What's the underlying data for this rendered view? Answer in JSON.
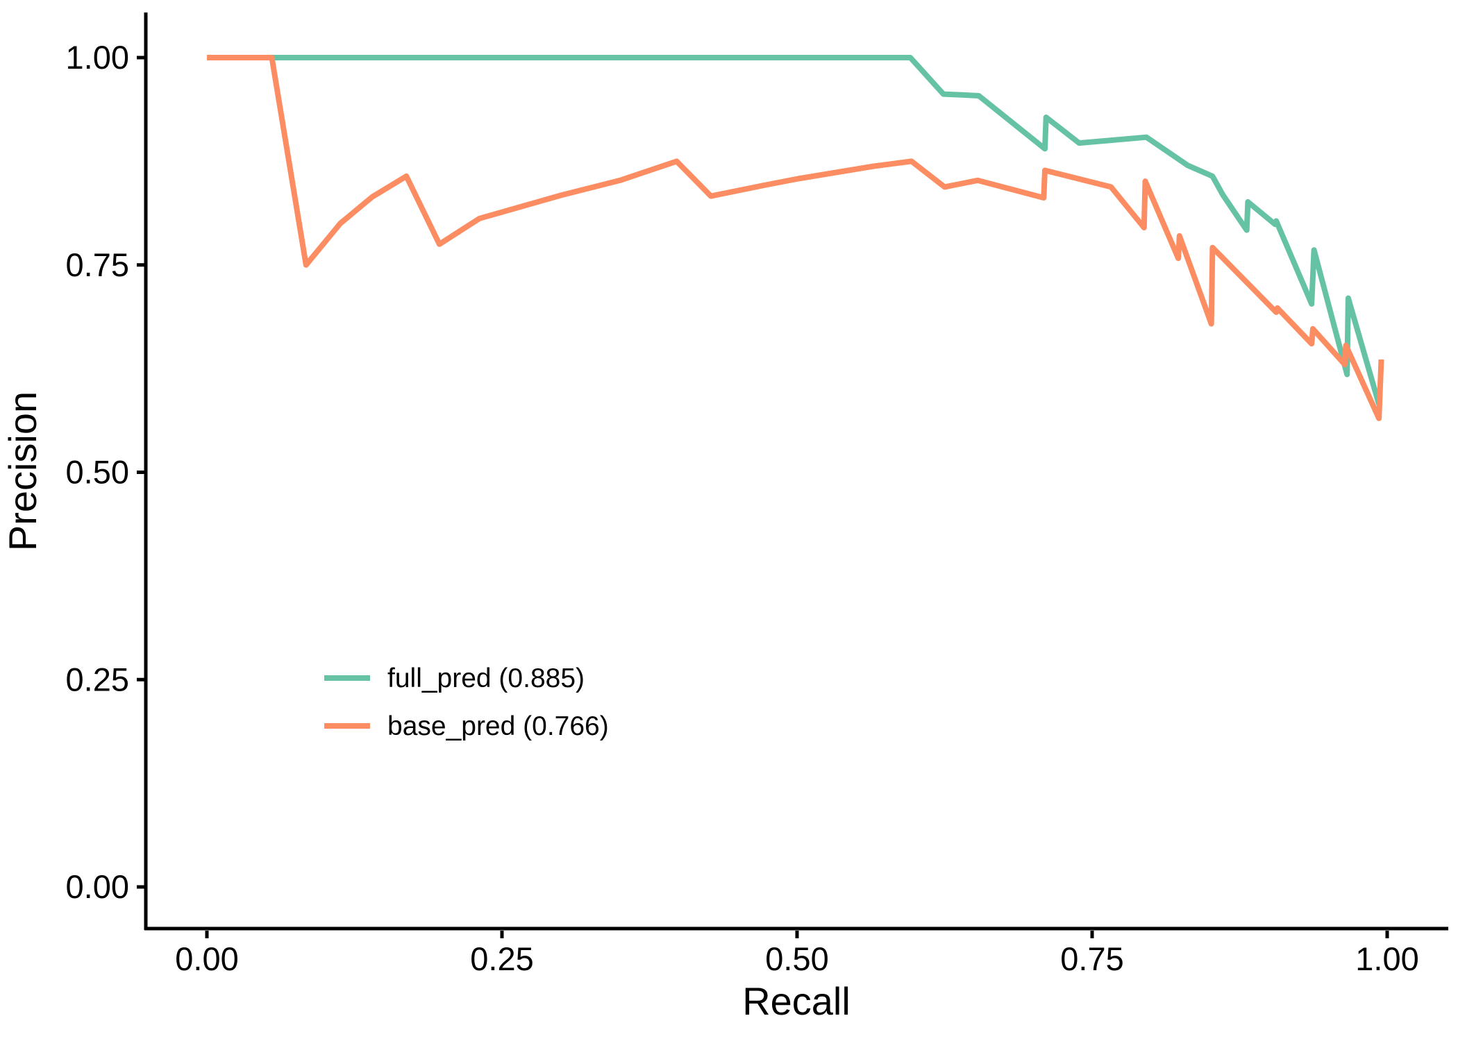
{
  "chart_data": {
    "type": "line",
    "title": "",
    "xlabel": "Recall",
    "ylabel": "Precision",
    "xlim": [
      0,
      1
    ],
    "ylim": [
      0,
      1
    ],
    "grid": "off",
    "background": "#ffffff",
    "axis_color": "#000000",
    "legend_position": "inside-lower-left",
    "x_ticks": [
      {
        "value": 0.0,
        "label": "0.00"
      },
      {
        "value": 0.25,
        "label": "0.25"
      },
      {
        "value": 0.5,
        "label": "0.50"
      },
      {
        "value": 0.75,
        "label": "0.75"
      },
      {
        "value": 1.0,
        "label": "1.00"
      }
    ],
    "y_ticks": [
      {
        "value": 0.0,
        "label": "0.00"
      },
      {
        "value": 0.25,
        "label": "0.25"
      },
      {
        "value": 0.5,
        "label": "0.50"
      },
      {
        "value": 0.75,
        "label": "0.75"
      },
      {
        "value": 1.0,
        "label": "1.00"
      }
    ],
    "series": [
      {
        "name": "full_pred",
        "label": "full_pred (0.885)",
        "auc": 0.885,
        "color": "#66C2A5",
        "points": [
          [
            0.0,
            1.0
          ],
          [
            0.596,
            1.0
          ],
          [
            0.624,
            0.956
          ],
          [
            0.64,
            0.955
          ],
          [
            0.654,
            0.954
          ],
          [
            0.71,
            0.89
          ],
          [
            0.711,
            0.928
          ],
          [
            0.739,
            0.897
          ],
          [
            0.796,
            0.904
          ],
          [
            0.831,
            0.87
          ],
          [
            0.852,
            0.857
          ],
          [
            0.861,
            0.834
          ],
          [
            0.881,
            0.792
          ],
          [
            0.882,
            0.826
          ],
          [
            0.905,
            0.799
          ],
          [
            0.906,
            0.803
          ],
          [
            0.936,
            0.703
          ],
          [
            0.938,
            0.768
          ],
          [
            0.966,
            0.618
          ],
          [
            0.967,
            0.71
          ],
          [
            0.993,
            0.582
          ]
        ]
      },
      {
        "name": "base_pred",
        "label": "base_pred (0.766)",
        "auc": 0.766,
        "color": "#FC8D62",
        "points": [
          [
            0.0,
            1.0
          ],
          [
            0.055,
            1.0
          ],
          [
            0.084,
            0.75
          ],
          [
            0.113,
            0.8
          ],
          [
            0.14,
            0.832
          ],
          [
            0.169,
            0.857
          ],
          [
            0.197,
            0.775
          ],
          [
            0.231,
            0.806
          ],
          [
            0.3,
            0.834
          ],
          [
            0.35,
            0.852
          ],
          [
            0.398,
            0.875
          ],
          [
            0.427,
            0.833
          ],
          [
            0.472,
            0.846
          ],
          [
            0.501,
            0.854
          ],
          [
            0.565,
            0.869
          ],
          [
            0.597,
            0.875
          ],
          [
            0.625,
            0.844
          ],
          [
            0.653,
            0.852
          ],
          [
            0.709,
            0.831
          ],
          [
            0.71,
            0.864
          ],
          [
            0.766,
            0.844
          ],
          [
            0.794,
            0.795
          ],
          [
            0.795,
            0.851
          ],
          [
            0.823,
            0.758
          ],
          [
            0.824,
            0.785
          ],
          [
            0.851,
            0.679
          ],
          [
            0.852,
            0.771
          ],
          [
            0.906,
            0.693
          ],
          [
            0.907,
            0.698
          ],
          [
            0.936,
            0.655
          ],
          [
            0.937,
            0.673
          ],
          [
            0.964,
            0.63
          ],
          [
            0.965,
            0.653
          ],
          [
            0.993,
            0.565
          ],
          [
            0.995,
            0.636
          ]
        ]
      }
    ]
  }
}
